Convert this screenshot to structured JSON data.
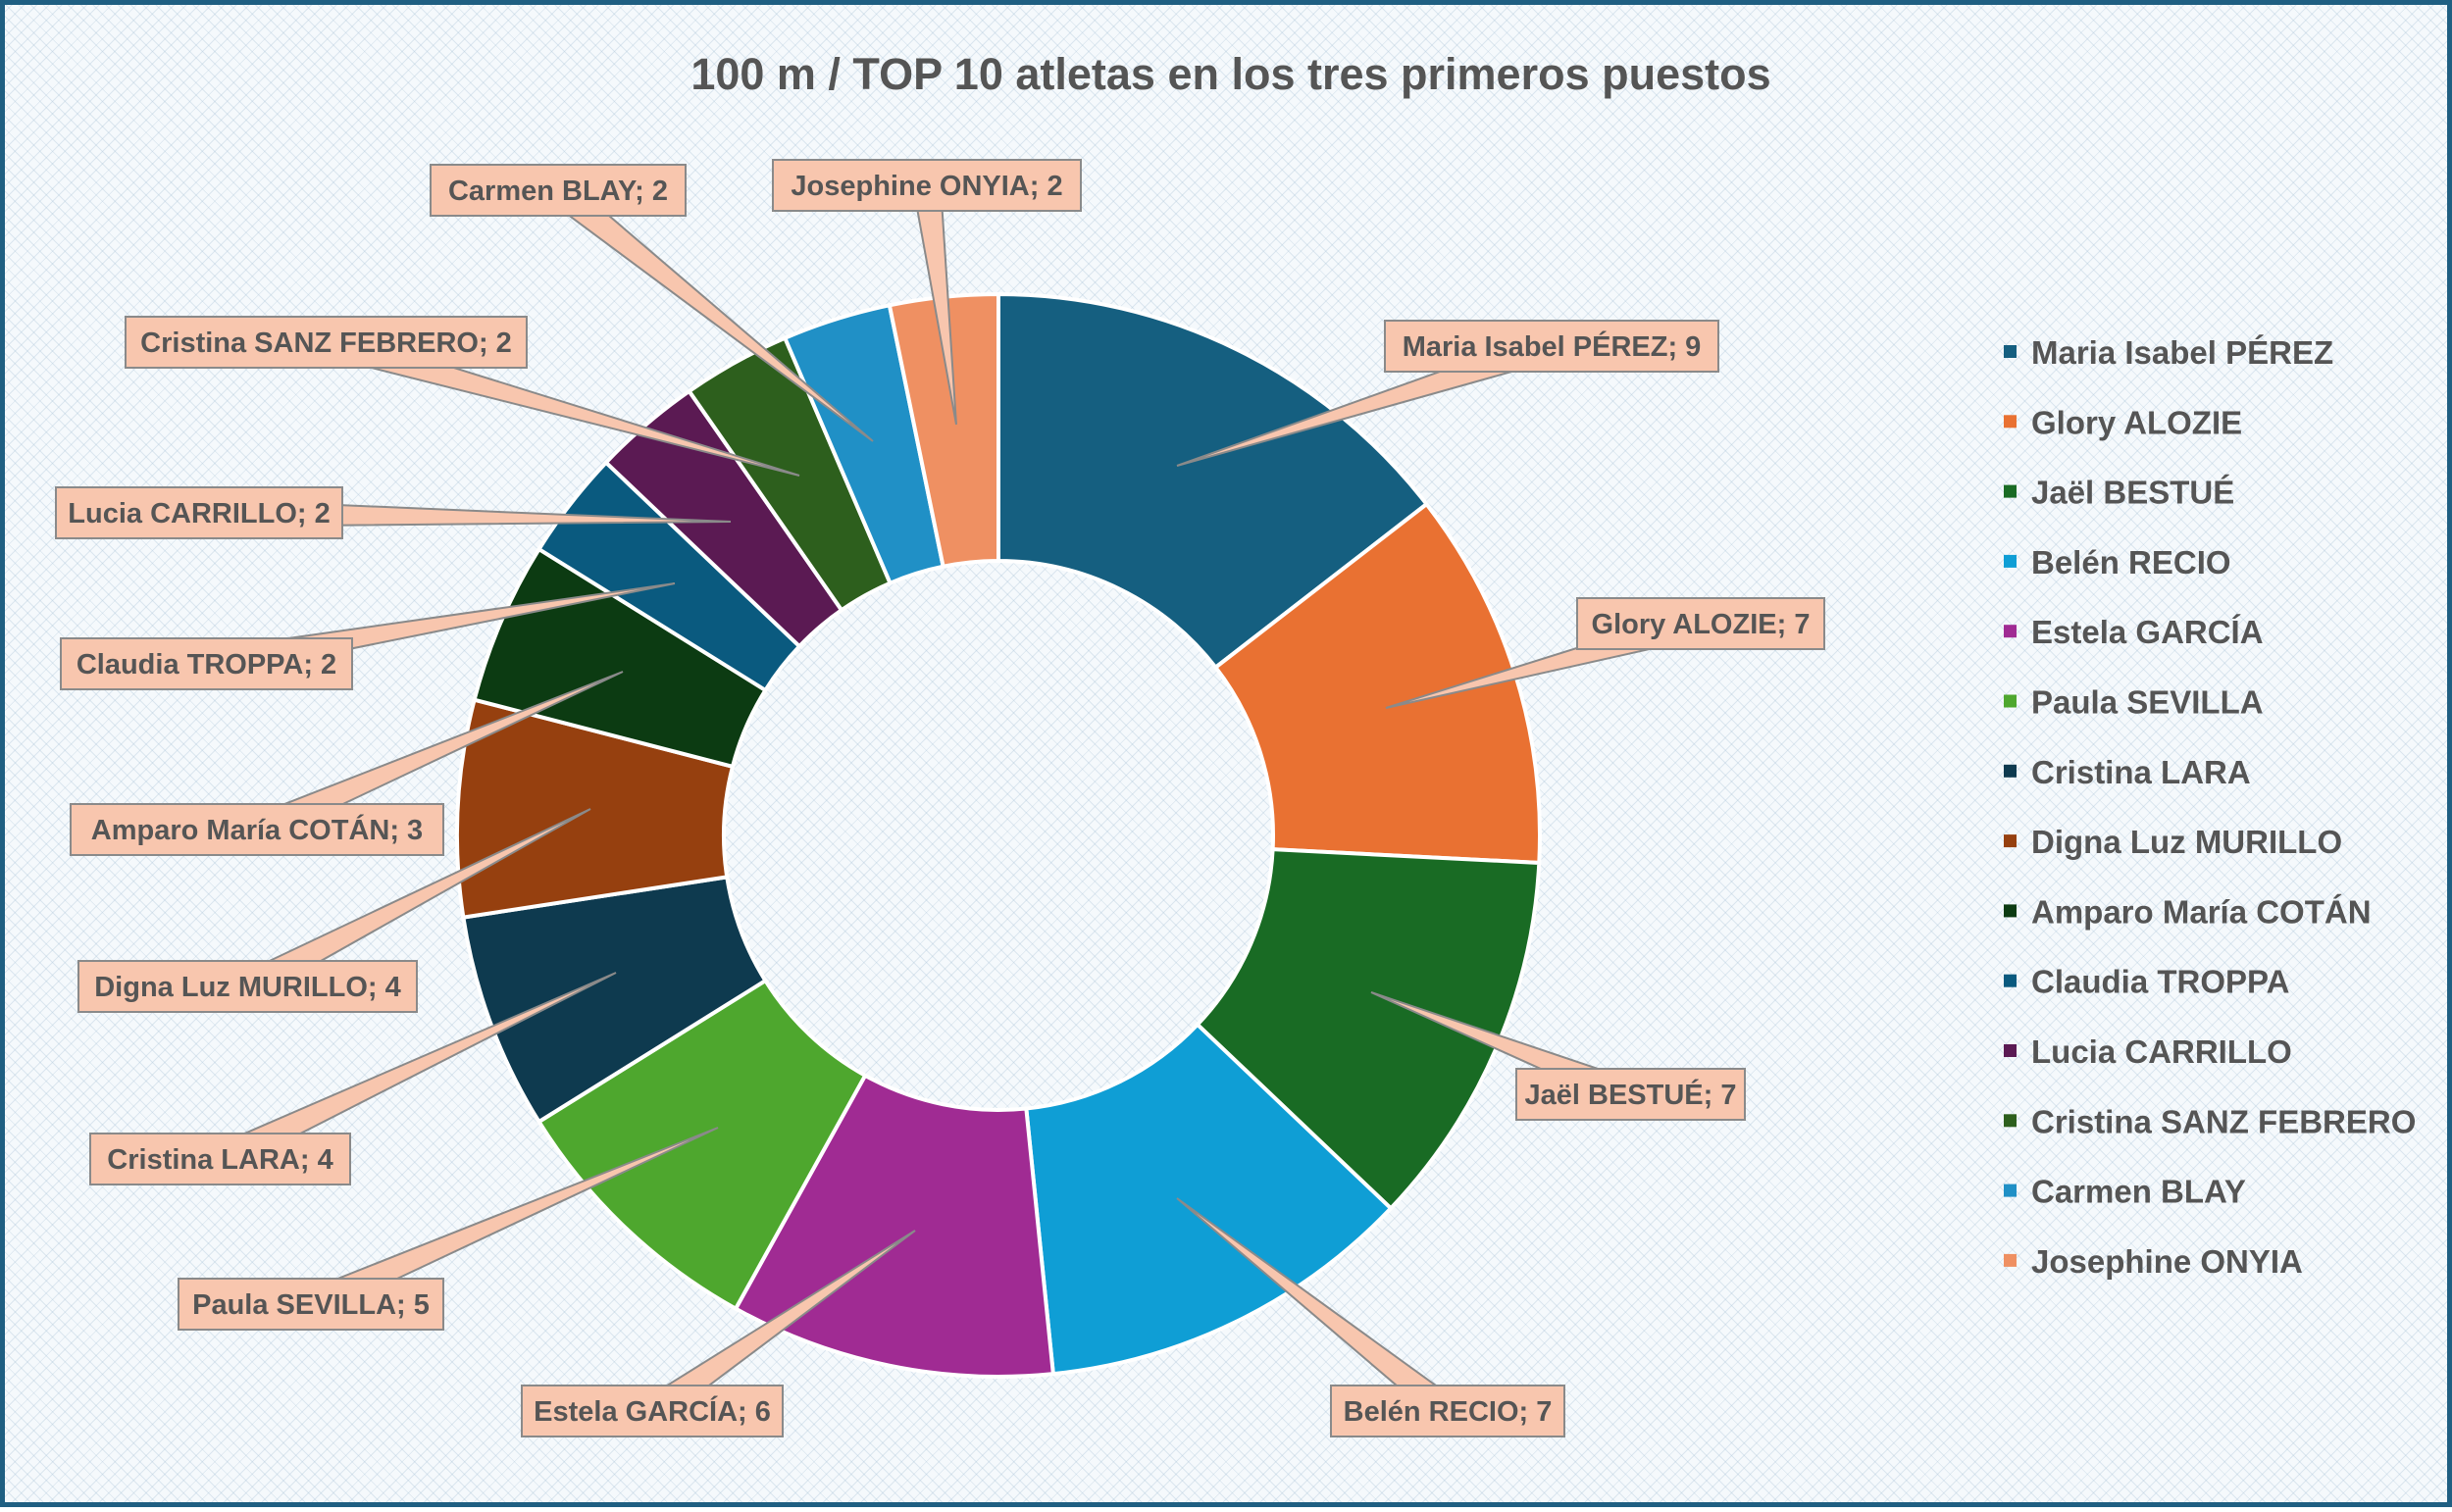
{
  "chart_data": {
    "type": "pie",
    "variant": "doughnut",
    "title": "100 m / TOP 10 atletas en los tres primeros puestos",
    "legend_position": "right",
    "label_separator": "; ",
    "categories": [
      "Maria Isabel PÉREZ",
      "Glory ALOZIE",
      "Jaël BESTUÉ",
      "Belén RECIO",
      "Estela GARCÍA",
      "Paula SEVILLA",
      "Cristina LARA",
      "Digna Luz MURILLO",
      "Amparo María COTÁN",
      "Claudia TROPPA",
      "Lucia CARRILLO",
      "Cristina SANZ FEBRERO",
      "Carmen BLAY",
      "Josephine ONYIA"
    ],
    "values": [
      9,
      7,
      7,
      7,
      6,
      5,
      4,
      4,
      3,
      2,
      2,
      2,
      2,
      2
    ],
    "colors": [
      "#155f80",
      "#e97132",
      "#196b24",
      "#0f9ed5",
      "#a02b93",
      "#4ea72e",
      "#0e3a4f",
      "#96400f",
      "#0c3b12",
      "#0a5a7f",
      "#5b1a53",
      "#2d5f1d",
      "#2090c6",
      "#ef9062"
    ]
  }
}
